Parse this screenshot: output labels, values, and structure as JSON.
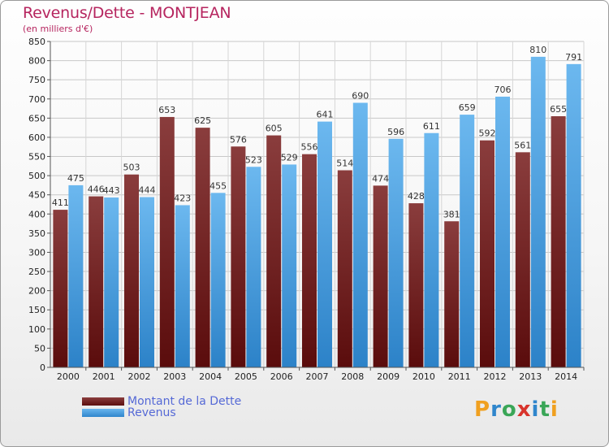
{
  "header": {
    "title": "Revenus/Dette - MONTJEAN",
    "subtitle": "(en milliers d'€)"
  },
  "legend": {
    "debt_label": "Montant de la Dette",
    "revenue_label": "Revenus"
  },
  "logo": {
    "letters": [
      "P",
      "r",
      "o",
      "x",
      "i",
      "t",
      "i"
    ],
    "colors": [
      "#f0a020",
      "#2f86cc",
      "#3aa657",
      "#d8342c",
      "#2f86cc",
      "#3aa657",
      "#f0a020"
    ]
  },
  "colors": {
    "debt_top": "#8a3d3d",
    "debt_bottom": "#5a0c0c",
    "rev_top": "#6cb8ef",
    "rev_bottom": "#2c82c8"
  },
  "chart_data": {
    "type": "bar",
    "title": "Revenus/Dette - MONTJEAN",
    "ylabel": "(en milliers d'€)",
    "xlabel": "",
    "ylim": [
      0,
      850
    ],
    "ytick_step": 50,
    "grid": true,
    "legend_position": "bottom-left",
    "categories": [
      "2000",
      "2001",
      "2002",
      "2003",
      "2004",
      "2005",
      "2006",
      "2007",
      "2008",
      "2009",
      "2010",
      "2011",
      "2012",
      "2013",
      "2014"
    ],
    "series": [
      {
        "name": "Montant de la Dette",
        "values": [
          411,
          446,
          503,
          653,
          625,
          576,
          605,
          556,
          514,
          474,
          428,
          381,
          592,
          561,
          655
        ]
      },
      {
        "name": "Revenus",
        "values": [
          475,
          443,
          444,
          423,
          455,
          523,
          529,
          641,
          690,
          596,
          611,
          659,
          706,
          810,
          791
        ]
      }
    ]
  }
}
